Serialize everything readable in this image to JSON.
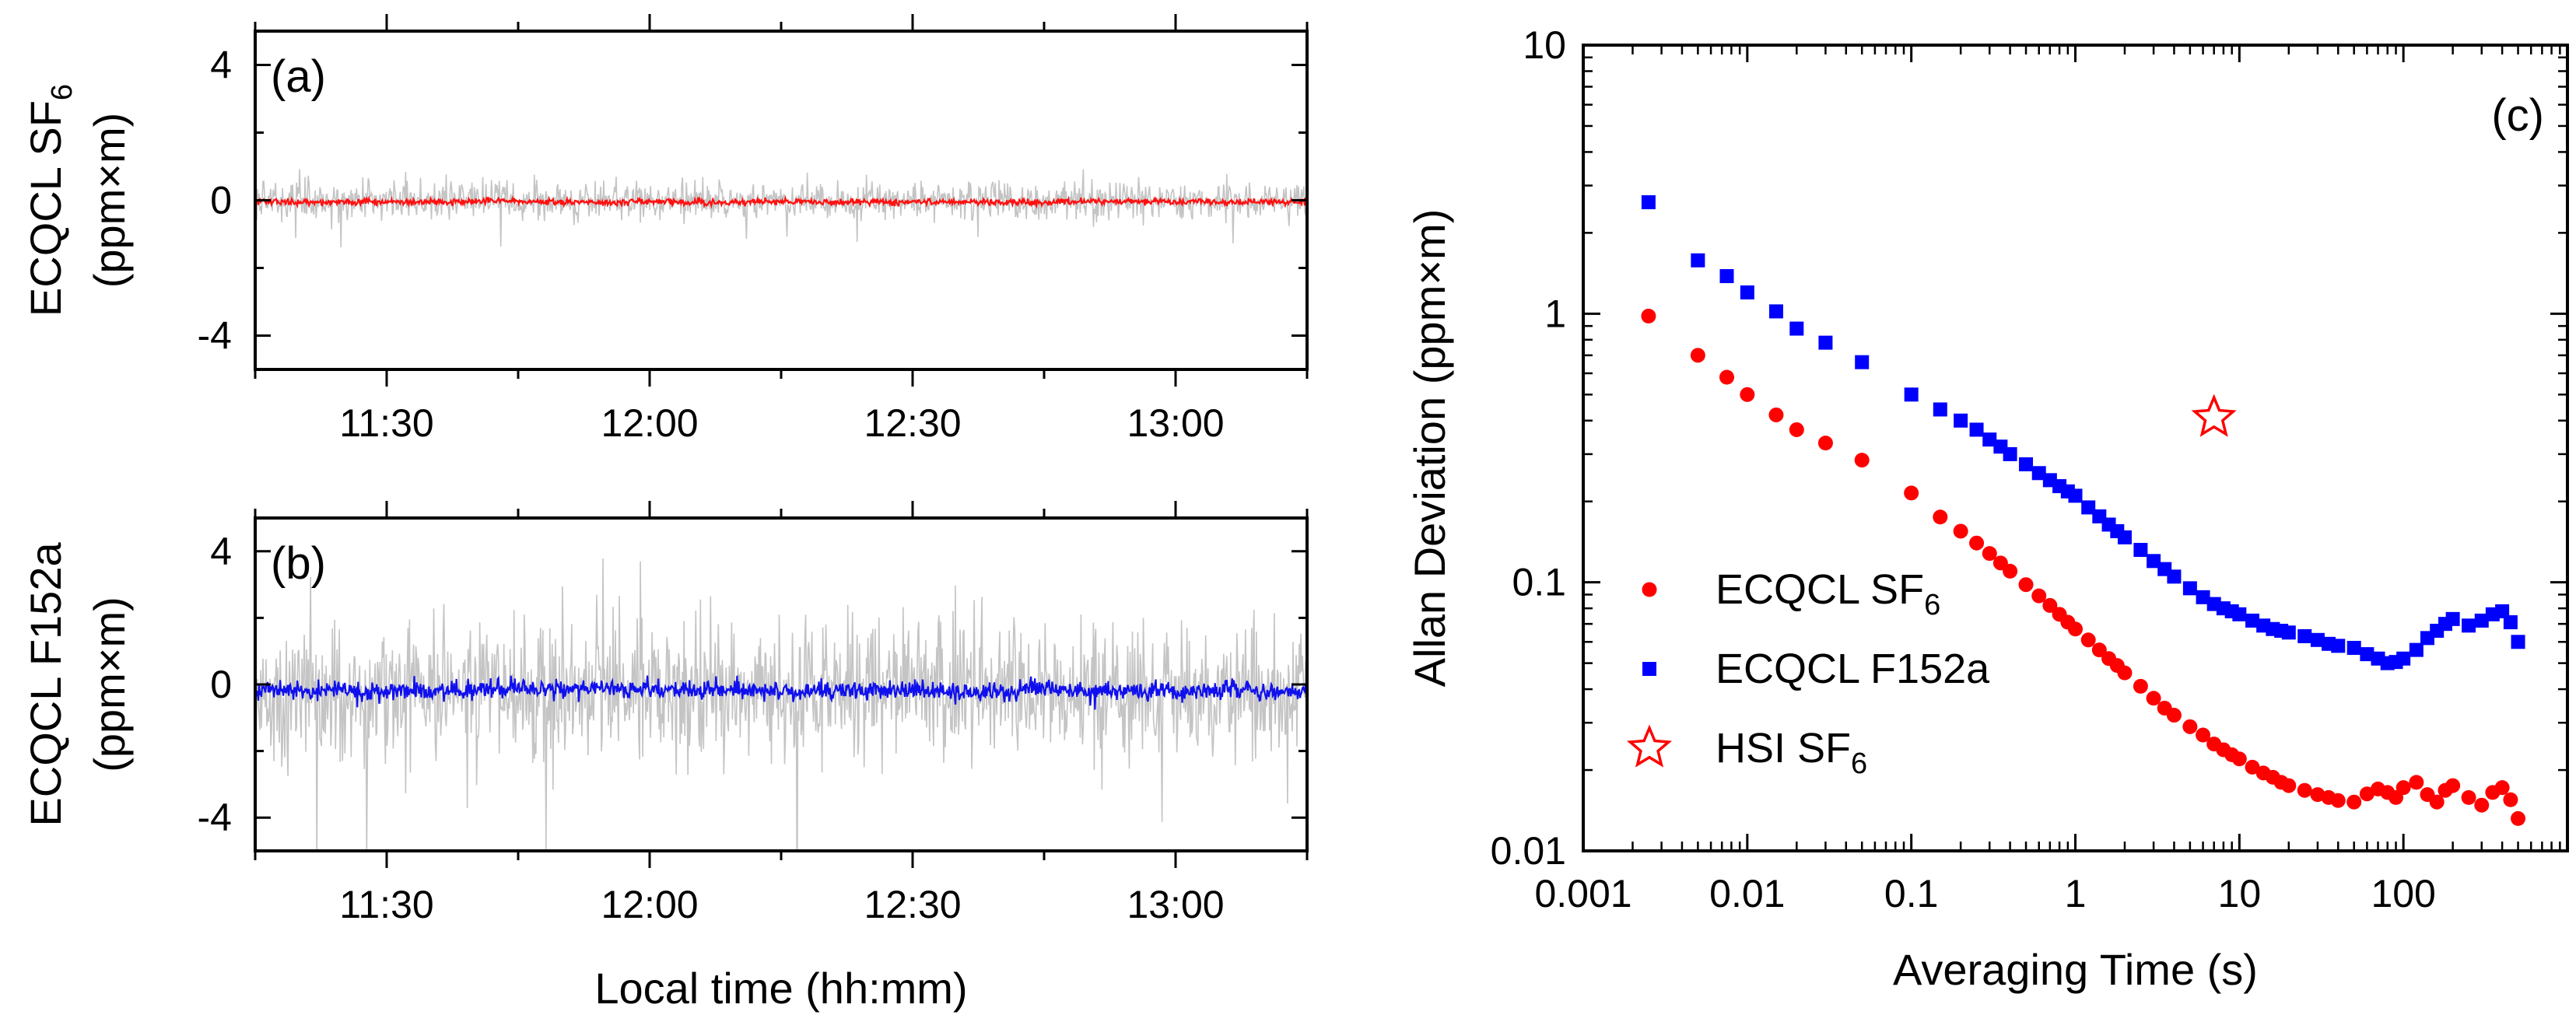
{
  "chart_data": [
    {
      "panel": "(a)",
      "type": "line",
      "ylabel_main": "ECQCL SF",
      "ylabel_sub": "6",
      "ylabel_unit": "(ppm×m)",
      "xlim": [
        "11:15",
        "13:15"
      ],
      "ylim": [
        -5,
        5
      ],
      "yticks": [
        "4",
        "0",
        "-4"
      ],
      "xticks": [
        "11:30",
        "12:00",
        "12:30",
        "13:00"
      ],
      "series": [
        {
          "role": "raw",
          "color": "#c4c4c4",
          "noise_sd": 0.28,
          "mean": 0.0
        },
        {
          "role": "averaged",
          "color": "#ff1010",
          "noise_sd": 0.045,
          "mean": -0.05
        }
      ]
    },
    {
      "panel": "(b)",
      "type": "line",
      "ylabel_main": "ECQCL F152a",
      "ylabel_unit": "(ppm×m)",
      "xlabel": "Local time (hh:mm)",
      "xlim": [
        "11:15",
        "13:15"
      ],
      "ylim": [
        -5,
        5
      ],
      "yticks": [
        "4",
        "0",
        "-4"
      ],
      "xticks": [
        "11:30",
        "12:00",
        "12:30",
        "13:00"
      ],
      "series": [
        {
          "role": "raw",
          "color": "#c4c4c4",
          "noise_sd": 1.05,
          "mean": -0.2
        },
        {
          "role": "averaged",
          "color": "#1010ee",
          "noise_sd": 0.14,
          "mean": -0.2
        }
      ]
    },
    {
      "panel": "(c)",
      "type": "scatter",
      "xscale": "log",
      "yscale": "log",
      "xlabel": "Averaging Time (s)",
      "ylabel": "Allan Deviation (ppm×m)",
      "xlim": [
        0.001,
        1000
      ],
      "ylim": [
        0.01,
        10
      ],
      "xticks": [
        "0.001",
        "0.01",
        "0.1",
        "1",
        "10",
        "100"
      ],
      "yticks": [
        "10",
        "1",
        "0.1",
        "0.01"
      ],
      "legend_position": "bottom-left",
      "series": [
        {
          "name": "ECQCL SF",
          "name_sub": "6",
          "marker": "circle",
          "color": "#ff0000",
          "x": [
            0.0025,
            0.005,
            0.0075,
            0.01,
            0.015,
            0.02,
            0.03,
            0.05,
            0.1,
            0.15,
            0.2,
            0.25,
            0.3,
            0.35,
            0.4,
            0.5,
            0.6,
            0.7,
            0.8,
            0.9,
            1,
            1.2,
            1.4,
            1.6,
            1.8,
            2,
            2.5,
            3,
            3.5,
            4,
            5,
            6,
            7,
            8,
            9,
            10,
            12,
            14,
            16,
            18,
            20,
            25,
            30,
            35,
            40,
            50,
            60,
            70,
            80,
            90,
            100,
            120,
            140,
            160,
            180,
            200,
            250,
            300,
            350,
            400,
            450,
            500
          ],
          "y": [
            0.98,
            0.7,
            0.58,
            0.5,
            0.42,
            0.37,
            0.33,
            0.285,
            0.215,
            0.175,
            0.155,
            0.14,
            0.128,
            0.118,
            0.11,
            0.098,
            0.089,
            0.082,
            0.076,
            0.071,
            0.067,
            0.061,
            0.056,
            0.052,
            0.049,
            0.046,
            0.041,
            0.037,
            0.034,
            0.032,
            0.029,
            0.027,
            0.025,
            0.0238,
            0.0228,
            0.022,
            0.0205,
            0.0195,
            0.0188,
            0.018,
            0.0175,
            0.0168,
            0.0162,
            0.0158,
            0.0154,
            0.0152,
            0.0163,
            0.017,
            0.0165,
            0.0158,
            0.0172,
            0.018,
            0.0162,
            0.0152,
            0.0168,
            0.0175,
            0.0158,
            0.0148,
            0.0165,
            0.0172,
            0.0155,
            0.0132
          ]
        },
        {
          "name": "ECQCL F152a",
          "marker": "square",
          "color": "#0000ff",
          "x": [
            0.0025,
            0.005,
            0.0075,
            0.01,
            0.015,
            0.02,
            0.03,
            0.05,
            0.1,
            0.15,
            0.2,
            0.25,
            0.3,
            0.35,
            0.4,
            0.5,
            0.6,
            0.7,
            0.8,
            0.9,
            1,
            1.2,
            1.4,
            1.6,
            1.8,
            2,
            2.5,
            3,
            3.5,
            4,
            5,
            6,
            7,
            8,
            9,
            10,
            12,
            14,
            16,
            18,
            20,
            25,
            30,
            35,
            40,
            50,
            60,
            70,
            80,
            90,
            100,
            120,
            140,
            160,
            180,
            200,
            250,
            300,
            350,
            400,
            450,
            500
          ],
          "y": [
            2.6,
            1.58,
            1.38,
            1.2,
            1.02,
            0.88,
            0.78,
            0.66,
            0.5,
            0.44,
            0.4,
            0.37,
            0.34,
            0.32,
            0.3,
            0.275,
            0.255,
            0.24,
            0.228,
            0.218,
            0.21,
            0.19,
            0.176,
            0.164,
            0.155,
            0.147,
            0.132,
            0.12,
            0.112,
            0.105,
            0.095,
            0.088,
            0.083,
            0.08,
            0.078,
            0.076,
            0.072,
            0.069,
            0.067,
            0.066,
            0.065,
            0.063,
            0.061,
            0.059,
            0.058,
            0.057,
            0.054,
            0.052,
            0.05,
            0.0505,
            0.052,
            0.056,
            0.062,
            0.066,
            0.07,
            0.073,
            0.069,
            0.072,
            0.076,
            0.078,
            0.071,
            0.06
          ]
        },
        {
          "name": "HSI SF",
          "name_sub": "6",
          "marker": "star-open",
          "color": "#ff0000",
          "x": [
            7
          ],
          "y": [
            0.41
          ]
        }
      ]
    }
  ]
}
